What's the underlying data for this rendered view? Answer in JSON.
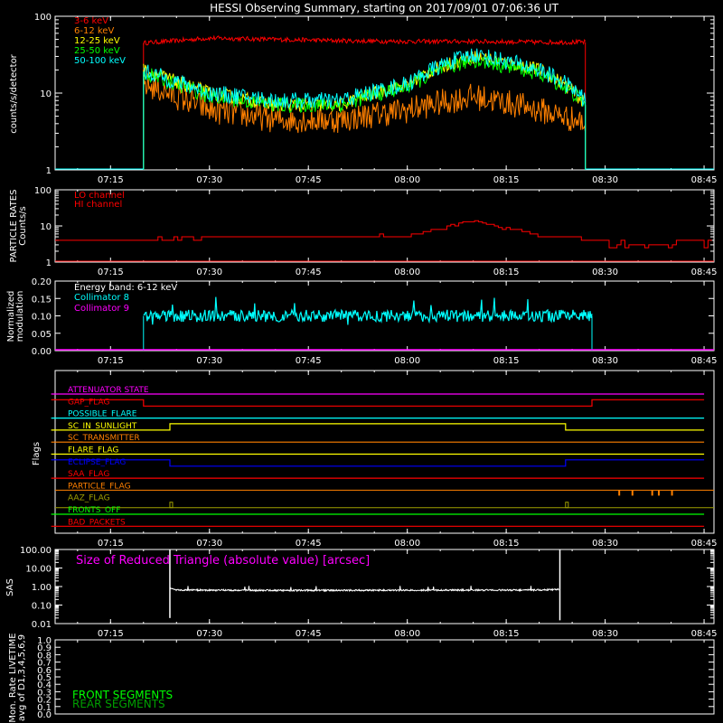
{
  "title": "HESSI Observing Summary, starting on 2017/09/01 07:06:36 UT",
  "time_ticks": [
    "07:15",
    "07:30",
    "07:45",
    "08:00",
    "08:15",
    "08:30",
    "08:45"
  ],
  "colors": {
    "e3_6": "#ff0000",
    "e6_12": "#ff8000",
    "e12_25": "#ffff00",
    "e25_50": "#00ff00",
    "e50_100": "#00ffff",
    "lo": "#ff0000",
    "hi": "#ff0000",
    "coll8": "#00ffff",
    "coll9": "#ff00ff",
    "sas": "#ffffff",
    "front": "#00ff00",
    "rear": "#00a000"
  },
  "chart_data": [
    {
      "type": "line",
      "panel": "count_rates",
      "ylabel": "counts/s/detector",
      "yscale": "log",
      "ylim": [
        1,
        100
      ],
      "y_ticks": [
        "1",
        "10",
        "100"
      ],
      "series": [
        {
          "name": "3-6 keV",
          "x": [
            "07:20",
            "07:25",
            "07:30",
            "07:40",
            "07:50",
            "08:00",
            "08:10",
            "08:20",
            "08:27"
          ],
          "values": [
            45,
            48,
            52,
            50,
            48,
            47,
            47,
            46,
            46
          ]
        },
        {
          "name": "6-12 keV",
          "x": [
            "07:20",
            "07:25",
            "07:30",
            "07:40",
            "07:50",
            "08:00",
            "08:10",
            "08:20",
            "08:27"
          ],
          "values": [
            13,
            9,
            6,
            4.5,
            4.5,
            6,
            9,
            6,
            4
          ]
        },
        {
          "name": "12-25 keV",
          "x": [
            "07:20",
            "07:25",
            "07:30",
            "07:40",
            "07:50",
            "08:00",
            "08:10",
            "08:20",
            "08:27"
          ],
          "values": [
            20,
            14,
            10,
            7,
            7,
            13,
            30,
            20,
            7
          ]
        },
        {
          "name": "25-50 keV",
          "x": [
            "07:20",
            "07:25",
            "07:30",
            "07:40",
            "07:50",
            "08:00",
            "08:10",
            "08:20",
            "08:27"
          ],
          "values": [
            18,
            13,
            9,
            7,
            7,
            12,
            27,
            18,
            7
          ]
        },
        {
          "name": "50-100 keV",
          "x": [
            "07:20",
            "07:25",
            "07:30",
            "07:40",
            "07:50",
            "08:00",
            "08:10",
            "08:20",
            "08:27"
          ],
          "values": [
            19,
            14,
            10,
            8,
            8,
            13,
            32,
            20,
            8
          ]
        }
      ]
    },
    {
      "type": "line",
      "panel": "particle_rates",
      "ylabel": "PARTICLE RATES Counts/s",
      "yscale": "log",
      "ylim": [
        1,
        100
      ],
      "y_ticks": [
        "1",
        "10",
        "100"
      ],
      "series": [
        {
          "name": "LO channel",
          "x": [],
          "values": []
        },
        {
          "name": "HI channel",
          "x": [
            "07:06",
            "07:20",
            "07:30",
            "07:40",
            "07:50",
            "08:00",
            "08:05",
            "08:10",
            "08:14",
            "08:20",
            "08:28",
            "08:35",
            "08:45"
          ],
          "values": [
            4,
            4,
            5,
            5,
            5,
            5.5,
            8,
            14,
            9,
            5,
            4,
            3,
            4
          ]
        }
      ]
    },
    {
      "type": "line",
      "panel": "modulation",
      "ylabel": "Normalized modulation",
      "ylim": [
        0,
        0.2
      ],
      "y_ticks": [
        "0.00",
        "0.05",
        "0.10",
        "0.15",
        "0.20"
      ],
      "annotation": "Energy band: 6-12 keV",
      "series": [
        {
          "name": "Collimator 8",
          "x": [
            "07:20",
            "08:28"
          ],
          "values": [
            0.1,
            0.1
          ]
        },
        {
          "name": "Collimator 9",
          "x": [
            "07:06",
            "08:45"
          ],
          "values": [
            0,
            0
          ]
        }
      ]
    },
    {
      "type": "line",
      "panel": "flags",
      "ylabel": "Flags",
      "series": [
        {
          "name": "ATTENUATOR STATE",
          "color": "#ff00ff",
          "x": [
            "07:06",
            "08:45"
          ],
          "values": [
            0,
            0
          ]
        },
        {
          "name": "GAP_FLAG",
          "color": "#ff0000",
          "x": [
            "07:06",
            "07:20",
            "07:20",
            "08:28",
            "08:28",
            "08:45"
          ],
          "values": [
            1,
            1,
            0,
            0,
            1,
            1
          ]
        },
        {
          "name": "POSSIBLE_FLARE",
          "color": "#00ffff",
          "x": [
            "07:06",
            "08:45"
          ],
          "values": [
            0,
            0
          ]
        },
        {
          "name": "SC_IN_SUNLIGHT",
          "color": "#ffff00",
          "x": [
            "07:06",
            "07:24",
            "07:24",
            "08:24",
            "08:24",
            "08:45"
          ],
          "values": [
            0,
            0,
            1,
            1,
            0,
            0
          ]
        },
        {
          "name": "SC_TRANSMITTER",
          "color": "#ff8000",
          "x": [
            "07:06",
            "08:45"
          ],
          "values": [
            0,
            0
          ]
        },
        {
          "name": "FLARE_FLAG",
          "color": "#ffff00",
          "x": [
            "07:06",
            "08:45"
          ],
          "values": [
            0,
            0
          ]
        },
        {
          "name": "ECLIPSE_FLAG",
          "color": "#0000ff",
          "x": [
            "07:06",
            "07:24",
            "07:24",
            "08:24",
            "08:24",
            "08:45"
          ],
          "values": [
            1,
            1,
            0,
            0,
            1,
            1
          ]
        },
        {
          "name": "SAA_FLAG",
          "color": "#ff0000",
          "x": [
            "07:06",
            "08:45"
          ],
          "values": [
            0,
            0
          ]
        },
        {
          "name": "PARTICLE_FLAG",
          "color": "#ff8000",
          "x": [
            "08:32",
            "08:34",
            "08:37",
            "08:38",
            "08:40"
          ],
          "values": [
            1,
            1,
            1,
            1,
            1
          ]
        },
        {
          "name": "AAZ_FLAG",
          "color": "#a0a000",
          "x": [
            "07:24",
            "08:24"
          ],
          "values": [
            1,
            1
          ]
        },
        {
          "name": "FRONTS_OFF",
          "color": "#00ff00",
          "x": [
            "07:06",
            "08:45"
          ],
          "values": [
            0,
            0
          ]
        },
        {
          "name": "BAD_PACKETS",
          "color": "#ff0000",
          "x": [
            "07:06",
            "08:45"
          ],
          "values": [
            0,
            0
          ]
        }
      ]
    },
    {
      "type": "line",
      "panel": "sas",
      "ylabel": "SAS",
      "yscale": "log",
      "ylim": [
        0.01,
        100
      ],
      "y_ticks": [
        "0.01",
        "0.10",
        "1.00",
        "10.00",
        "100.00"
      ],
      "annotation": "Size of Reduced Triangle (absolute value) [arcsec]",
      "series": [
        {
          "name": "",
          "x": [
            "07:24",
            "07:25",
            "07:40",
            "08:00",
            "08:20",
            "08:23"
          ],
          "values": [
            0.8,
            0.65,
            0.62,
            0.63,
            0.65,
            0.7
          ]
        }
      ]
    },
    {
      "type": "line",
      "panel": "livetime",
      "ylabel": "Mon. Rate LIVETIME avg of D1,3,4,5,6,9",
      "ylim": [
        0,
        1.0
      ],
      "y_ticks": [
        "0.0",
        "0.1",
        "0.2",
        "0.3",
        "0.4",
        "0.5",
        "0.6",
        "0.7",
        "0.8",
        "0.9",
        "1.0"
      ],
      "series": [
        {
          "name": "FRONT SEGMENTS",
          "x": [],
          "values": []
        },
        {
          "name": "REAR SEGMENTS",
          "x": [],
          "values": []
        }
      ]
    }
  ]
}
